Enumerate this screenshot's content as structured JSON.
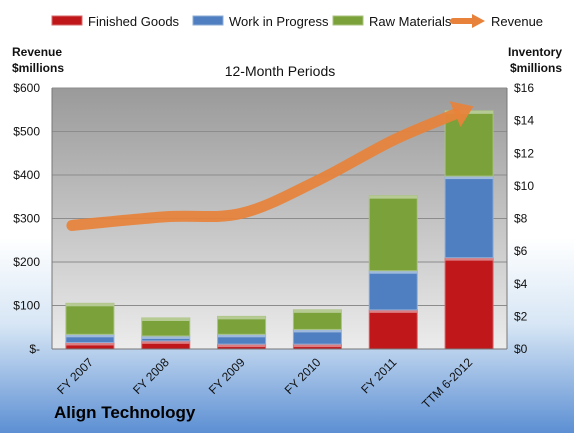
{
  "chart_data": {
    "type": "bar",
    "title": "Align Technology",
    "subtitle": "12-Month Periods",
    "categories": [
      "FY 2007",
      "FY 2008",
      "FY 2009",
      "FY 2010",
      "FY 2011",
      "TTM 6-2012"
    ],
    "series": [
      {
        "name": "Finished Goods",
        "axis": "right",
        "color": "#c0171b",
        "values": [
          0.4,
          0.5,
          0.3,
          0.3,
          2.4,
          5.6
        ]
      },
      {
        "name": "Work in Progress",
        "axis": "right",
        "color": "#4f7fc0",
        "values": [
          0.5,
          0.3,
          0.6,
          0.9,
          2.4,
          5.0
        ]
      },
      {
        "name": "Raw Materials",
        "axis": "right",
        "color": "#7aa13a",
        "values": [
          1.9,
          1.1,
          1.1,
          1.2,
          4.6,
          4.0
        ]
      }
    ],
    "line": {
      "name": "Revenue",
      "axis": "left",
      "color": "#e8823a",
      "values": [
        284,
        304,
        312,
        387,
        480,
        540
      ]
    },
    "ylabel_left": "Revenue\n$millions",
    "ylabel_right": "Inventory\n$millions",
    "ylim_left": [
      0,
      600
    ],
    "ylim_right": [
      0,
      16
    ],
    "yticks_left": [
      "$-",
      "$100",
      "$200",
      "$300",
      "$400",
      "$500",
      "$600"
    ],
    "yticks_right": [
      "$0",
      "$2",
      "$4",
      "$6",
      "$8",
      "$10",
      "$12",
      "$14",
      "$16"
    ],
    "legend_position": "top",
    "grid": true
  }
}
